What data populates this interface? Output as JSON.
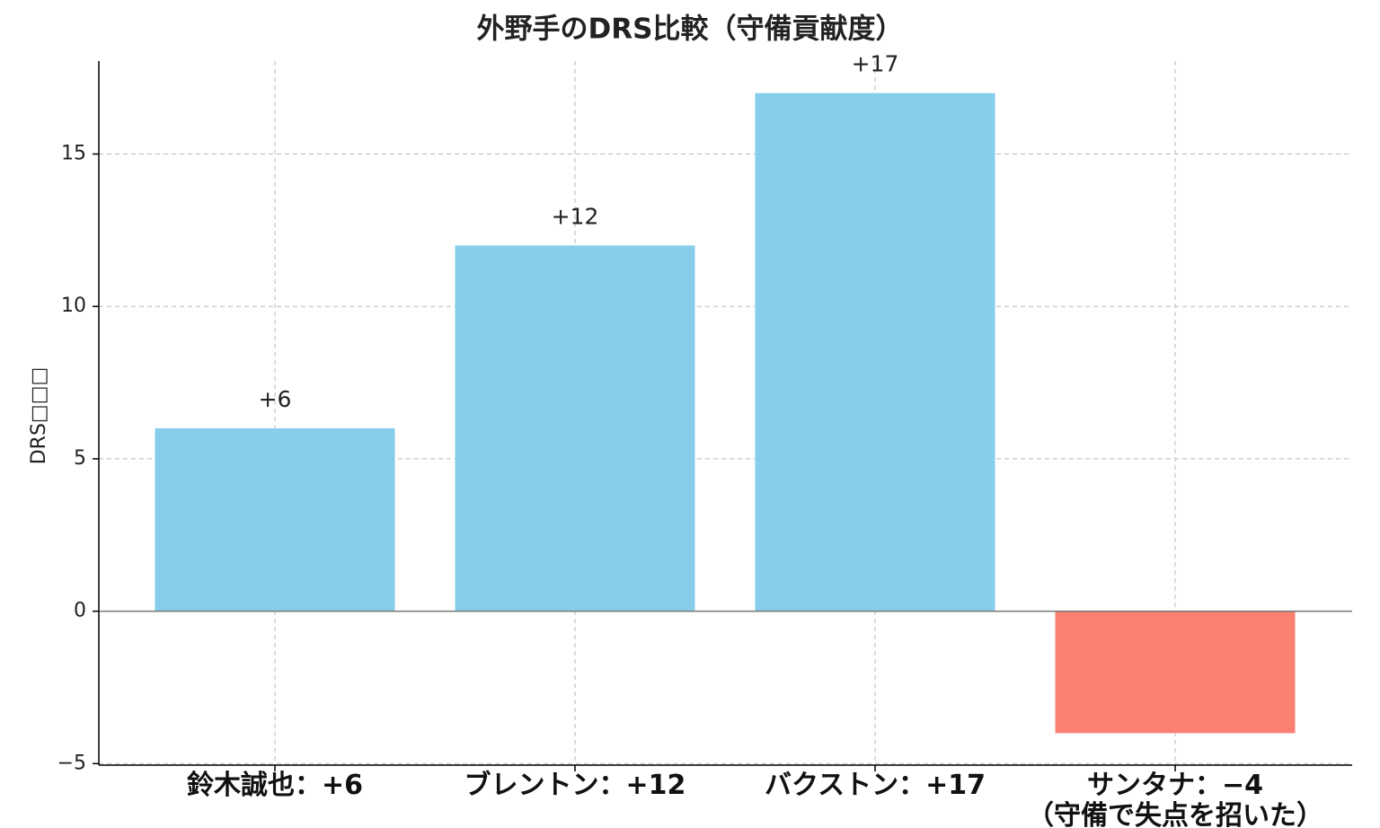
{
  "chart_data": {
    "type": "bar",
    "title": "外野手のDRS比較（守備貢献度）",
    "y_label": "DRS□□□",
    "categories": [
      "鈴木誠也：+6",
      "ブレントン：+12",
      "バクストン：+17",
      "サンタナ：−4\n（守備で失点を招いた）"
    ],
    "values": [
      6,
      12,
      17,
      -4
    ],
    "value_labels": [
      "+6",
      "+12",
      "+17",
      null
    ],
    "colors": [
      "#87ceeb",
      "#87ceeb",
      "#87ceeb",
      "#fa8072"
    ],
    "ylim": [
      -5.05,
      18.05
    ],
    "yticks": [
      {
        "value": -5,
        "label": "−5"
      },
      0,
      5,
      10,
      15
    ],
    "grid": true
  }
}
